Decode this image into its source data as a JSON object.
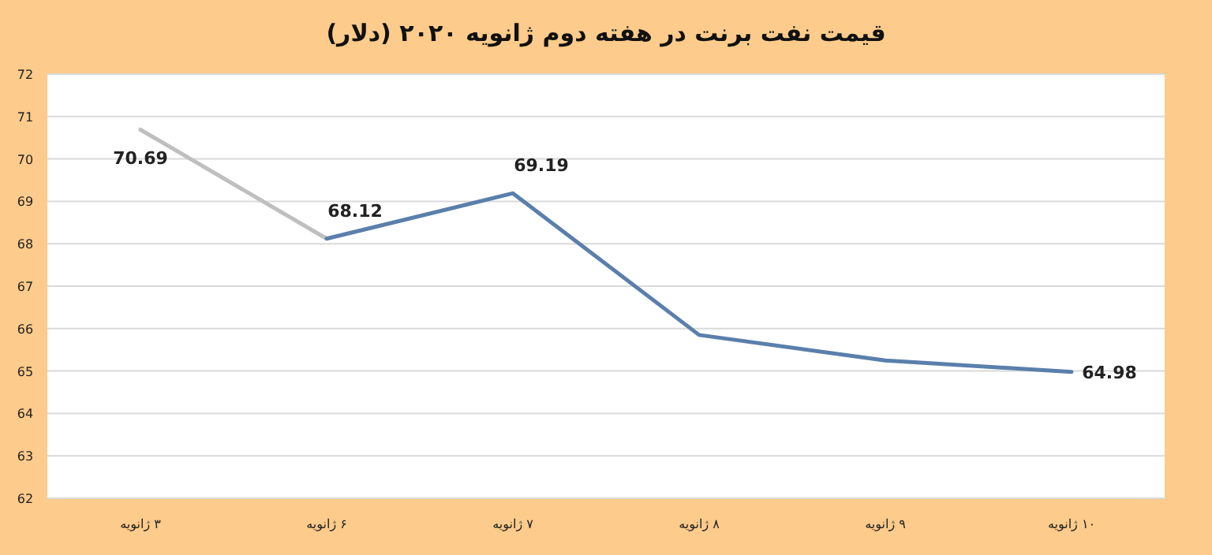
{
  "chart_data": {
    "type": "line",
    "title": "قیمت نفت برنت در هفته دوم ژانویه ۲۰۲۰ (دلار)",
    "categories": [
      "۳ ژانویه",
      "۶ ژانویه",
      "۷ ژانویه",
      "۸ ژانویه",
      "۹ ژانویه",
      "۱۰ ژانویه"
    ],
    "series": [
      {
        "color": "#bfbfbf",
        "values": [
          70.69,
          68.12,
          null,
          null,
          null,
          null
        ],
        "value_labels": [
          "70.69",
          null,
          null,
          null,
          null,
          null
        ]
      },
      {
        "color": "#5a7fac",
        "values": [
          null,
          68.12,
          69.19,
          65.85,
          65.25,
          64.98
        ],
        "value_labels": [
          null,
          "68.12",
          "69.19",
          null,
          null,
          "64.98"
        ]
      }
    ],
    "ylim": [
      62,
      72
    ],
    "yticks": [
      62,
      63,
      64,
      65,
      66,
      67,
      68,
      69,
      70,
      71,
      72
    ],
    "grid": "y",
    "marker": "none"
  }
}
